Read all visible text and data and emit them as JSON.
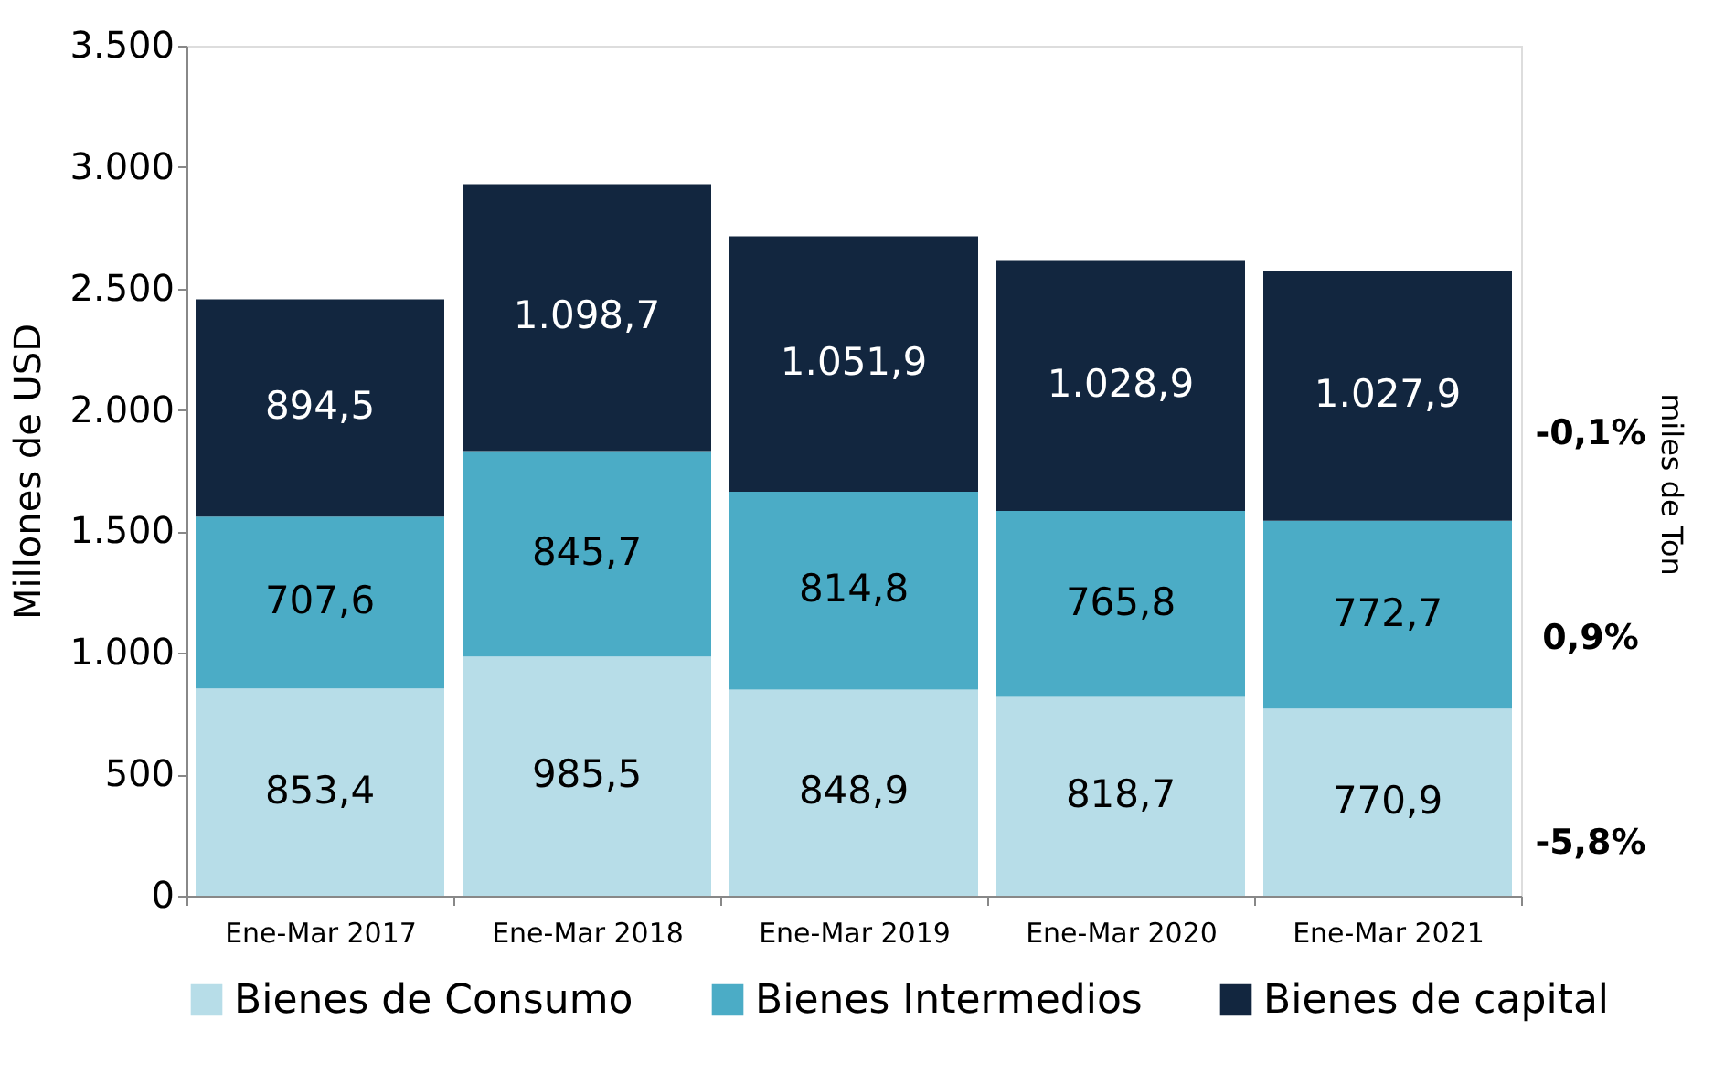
{
  "chart_data": {
    "type": "bar",
    "stacked": true,
    "ylabel": "Millones de  USD",
    "categories": [
      "Ene-Mar 2017",
      "Ene-Mar 2018",
      "Ene-Mar 2019",
      "Ene-Mar 2020",
      "Ene-Mar 2021"
    ],
    "series": [
      {
        "name": "Bienes de Consumo",
        "color": "#b7dde8",
        "values": [
          853.4,
          985.5,
          848.9,
          818.7,
          770.9
        ],
        "value_labels": [
          "853,4",
          "985,5",
          "848,9",
          "818,7",
          "770,9"
        ]
      },
      {
        "name": "Bienes Intermedios",
        "color": "#4bacc6",
        "values": [
          707.6,
          845.7,
          814.8,
          765.8,
          772.7
        ],
        "value_labels": [
          "707,6",
          "845,7",
          "814,8",
          "765,8",
          "772,7"
        ]
      },
      {
        "name": "Bienes de capital",
        "color": "#12263f",
        "values": [
          894.5,
          1098.7,
          1051.9,
          1028.9,
          1027.9
        ],
        "value_labels": [
          "894,5",
          "1.098,7",
          "1.051,9",
          "1.028,9",
          "1.027,9"
        ]
      }
    ],
    "ylim": [
      0,
      3500
    ],
    "yticks": [
      0,
      500,
      {
        "value": 1000,
        "label": "1.000"
      },
      {
        "value": 1500,
        "label": "1.500"
      },
      {
        "value": 2000,
        "label": "2.000"
      },
      {
        "value": 2500,
        "label": "2.500"
      },
      {
        "value": 3000,
        "label": "3.000"
      },
      {
        "value": 3500,
        "label": "3.500"
      }
    ],
    "legend": "bottom",
    "grid": false,
    "annotations": [
      "-0,1%",
      "0,9%",
      "-5,8%",
      "miles de Ton"
    ]
  }
}
